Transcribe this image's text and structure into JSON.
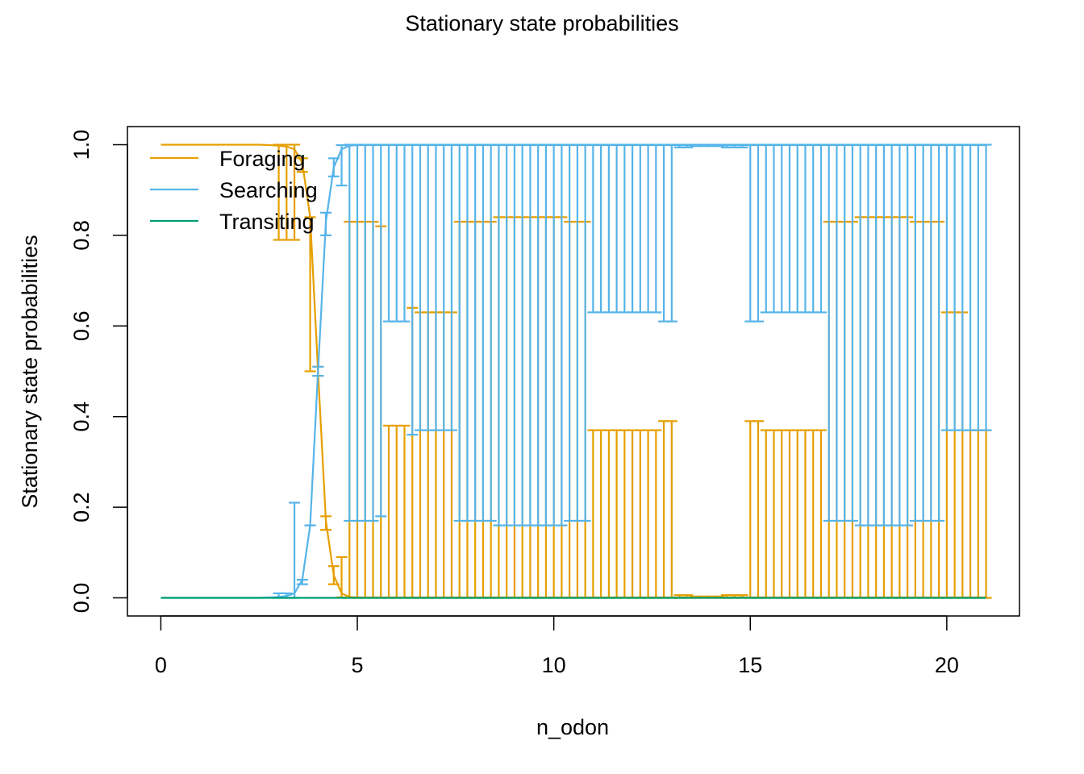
{
  "chart_data": {
    "type": "line",
    "title": "Stationary state probabilities",
    "xlabel": "n_odon",
    "ylabel": "Stationary state probabilities",
    "xlim": [
      -0.85,
      21.85
    ],
    "ylim": [
      -0.04,
      1.04
    ],
    "xticks": [
      0,
      5,
      10,
      15,
      20
    ],
    "yticks": [
      "0.0",
      "0.2",
      "0.4",
      "0.6",
      "0.8",
      "1.0"
    ],
    "grid": false,
    "legend_position": "top-left",
    "colors": {
      "Foraging": "#E69F00",
      "Searching": "#56B4E9",
      "Transiting": "#009E73"
    },
    "series": [
      {
        "name": "Foraging",
        "x": [
          0,
          0.5,
          1,
          1.5,
          2,
          2.5,
          2.8,
          3.0,
          3.2,
          3.4,
          3.6,
          3.8,
          4.0,
          4.2,
          4.4,
          4.6,
          4.8,
          5,
          6,
          8,
          10,
          12,
          14,
          16,
          18,
          20,
          21
        ],
        "values": [
          1,
          1,
          1,
          1,
          1,
          1,
          0.999,
          0.998,
          0.996,
          0.99,
          0.96,
          0.84,
          0.5,
          0.17,
          0.05,
          0.01,
          0.002,
          0.001,
          0.001,
          0.001,
          0.001,
          0.001,
          0.001,
          0.001,
          0.001,
          0.001,
          0.001
        ]
      },
      {
        "name": "Searching",
        "x": [
          0,
          0.5,
          1,
          1.5,
          2,
          2.5,
          2.8,
          3.0,
          3.2,
          3.4,
          3.6,
          3.8,
          4.0,
          4.2,
          4.4,
          4.6,
          4.8,
          5,
          6,
          8,
          10,
          12,
          14,
          16,
          18,
          20,
          21
        ],
        "values": [
          0,
          0,
          0,
          0,
          0,
          0,
          0.001,
          0.002,
          0.004,
          0.01,
          0.04,
          0.16,
          0.5,
          0.83,
          0.95,
          0.99,
          0.998,
          0.999,
          0.999,
          0.999,
          0.999,
          0.999,
          0.999,
          0.999,
          0.999,
          0.999,
          0.999
        ]
      },
      {
        "name": "Transiting",
        "x": [
          0,
          5,
          10,
          15,
          21
        ],
        "values": [
          0,
          0,
          0,
          0,
          0
        ]
      }
    ],
    "error_bars": {
      "Foraging": {
        "x": [
          3.0,
          3.2,
          3.4,
          3.6,
          3.8,
          4.0,
          4.2,
          4.4,
          4.6,
          4.8,
          5.0,
          5.2,
          5.4,
          5.6,
          5.8,
          6.0,
          6.2,
          6.4,
          6.6,
          6.8,
          7.0,
          7.2,
          7.4,
          7.6,
          7.8,
          8.0,
          8.2,
          8.4,
          8.6,
          8.8,
          9.0,
          9.2,
          9.4,
          9.6,
          9.8,
          10.0,
          10.2,
          10.4,
          10.6,
          10.8,
          11.0,
          11.2,
          11.4,
          11.6,
          11.8,
          12.0,
          12.2,
          12.4,
          12.6,
          12.8,
          13.0,
          13.2,
          13.4,
          13.6,
          13.8,
          14.0,
          14.2,
          14.4,
          14.6,
          14.8,
          15.0,
          15.2,
          15.4,
          15.6,
          15.8,
          16.0,
          16.2,
          16.4,
          16.6,
          16.8,
          17.0,
          17.2,
          17.4,
          17.6,
          17.8,
          18.0,
          18.2,
          18.4,
          18.6,
          18.8,
          19.0,
          19.2,
          19.4,
          19.6,
          19.8,
          20.0,
          20.2,
          20.4,
          20.6,
          20.8,
          21.0
        ],
        "lower": [
          0.79,
          0.79,
          0.79,
          0.94,
          0.5,
          0.49,
          0.15,
          0.03,
          0.001,
          0,
          0,
          0,
          0,
          0,
          0,
          0,
          0,
          0,
          0,
          0,
          0,
          0,
          0,
          0,
          0,
          0,
          0,
          0,
          0,
          0,
          0,
          0,
          0,
          0,
          0,
          0,
          0,
          0,
          0,
          0,
          0,
          0,
          0,
          0,
          0,
          0,
          0,
          0,
          0,
          0,
          0,
          0,
          0,
          0,
          0,
          0,
          0,
          0,
          0,
          0,
          0,
          0,
          0,
          0,
          0,
          0,
          0,
          0,
          0,
          0,
          0,
          0,
          0,
          0,
          0,
          0,
          0,
          0,
          0,
          0,
          0,
          0,
          0,
          0,
          0,
          0,
          0,
          0,
          0,
          0,
          0
        ],
        "upper": [
          1.0,
          1.0,
          1.0,
          0.97,
          0.84,
          0.51,
          0.18,
          0.07,
          0.09,
          0.83,
          0.83,
          0.83,
          0.83,
          0.82,
          0.38,
          0.38,
          0.38,
          0.64,
          0.63,
          0.63,
          0.63,
          0.63,
          0.63,
          0.83,
          0.83,
          0.83,
          0.83,
          0.83,
          0.84,
          0.84,
          0.84,
          0.84,
          0.84,
          0.84,
          0.84,
          0.84,
          0.84,
          0.83,
          0.83,
          0.83,
          0.37,
          0.37,
          0.37,
          0.37,
          0.37,
          0.37,
          0.37,
          0.37,
          0.37,
          0.39,
          0.39,
          0.006,
          0.006,
          0.003,
          0.003,
          0.003,
          0.003,
          0.006,
          0.006,
          0.006,
          0.39,
          0.39,
          0.37,
          0.37,
          0.37,
          0.37,
          0.37,
          0.37,
          0.37,
          0.37,
          0.83,
          0.83,
          0.83,
          0.83,
          0.84,
          0.84,
          0.84,
          0.84,
          0.84,
          0.84,
          0.84,
          0.83,
          0.83,
          0.83,
          0.83,
          0.63,
          0.63,
          0.63,
          0.37,
          0.37,
          0.37
        ]
      },
      "Searching": {
        "x": [
          3.0,
          3.2,
          3.4,
          3.6,
          3.8,
          4.0,
          4.2,
          4.4,
          4.6,
          4.8,
          5.0,
          5.2,
          5.4,
          5.6,
          5.8,
          6.0,
          6.2,
          6.4,
          6.6,
          6.8,
          7.0,
          7.2,
          7.4,
          7.6,
          7.8,
          8.0,
          8.2,
          8.4,
          8.6,
          8.8,
          9.0,
          9.2,
          9.4,
          9.6,
          9.8,
          10.0,
          10.2,
          10.4,
          10.6,
          10.8,
          11.0,
          11.2,
          11.4,
          11.6,
          11.8,
          12.0,
          12.2,
          12.4,
          12.6,
          12.8,
          13.0,
          13.2,
          13.4,
          13.6,
          13.8,
          14.0,
          14.2,
          14.4,
          14.6,
          14.8,
          15.0,
          15.2,
          15.4,
          15.6,
          15.8,
          16.0,
          16.2,
          16.4,
          16.6,
          16.8,
          17.0,
          17.2,
          17.4,
          17.6,
          17.8,
          18.0,
          18.2,
          18.4,
          18.6,
          18.8,
          19.0,
          19.2,
          19.4,
          19.6,
          19.8,
          20.0,
          20.2,
          20.4,
          20.6,
          20.8,
          21.0
        ],
        "lower": [
          0,
          0,
          0,
          0.03,
          0.16,
          0.49,
          0.8,
          0.93,
          0.91,
          0.17,
          0.17,
          0.17,
          0.17,
          0.18,
          0.61,
          0.61,
          0.61,
          0.36,
          0.37,
          0.37,
          0.37,
          0.37,
          0.37,
          0.17,
          0.17,
          0.17,
          0.17,
          0.17,
          0.16,
          0.16,
          0.16,
          0.16,
          0.16,
          0.16,
          0.16,
          0.16,
          0.16,
          0.17,
          0.17,
          0.17,
          0.63,
          0.63,
          0.63,
          0.63,
          0.63,
          0.63,
          0.63,
          0.63,
          0.63,
          0.61,
          0.61,
          0.994,
          0.994,
          0.997,
          0.997,
          0.997,
          0.997,
          0.994,
          0.994,
          0.994,
          0.61,
          0.61,
          0.63,
          0.63,
          0.63,
          0.63,
          0.63,
          0.63,
          0.63,
          0.63,
          0.17,
          0.17,
          0.17,
          0.17,
          0.16,
          0.16,
          0.16,
          0.16,
          0.16,
          0.16,
          0.16,
          0.17,
          0.17,
          0.17,
          0.17,
          0.37,
          0.37,
          0.37,
          0.37,
          0.37,
          0.37
        ],
        "upper": [
          0.01,
          0.01,
          0.21,
          0.04,
          0.16,
          0.51,
          0.85,
          0.97,
          0.999,
          1,
          1,
          1,
          1,
          1,
          1,
          1,
          1,
          1,
          1,
          1,
          1,
          1,
          1,
          1,
          1,
          1,
          1,
          1,
          1,
          1,
          1,
          1,
          1,
          1,
          1,
          1,
          1,
          1,
          1,
          1,
          1,
          1,
          1,
          1,
          1,
          1,
          1,
          1,
          1,
          1,
          1,
          1,
          1,
          1,
          1,
          1,
          1,
          1,
          1,
          1,
          1,
          1,
          1,
          1,
          1,
          1,
          1,
          1,
          1,
          1,
          1,
          1,
          1,
          1,
          1,
          1,
          1,
          1,
          1,
          1,
          1,
          1,
          1,
          1,
          1,
          1,
          1,
          1,
          1,
          1,
          1
        ]
      }
    }
  }
}
